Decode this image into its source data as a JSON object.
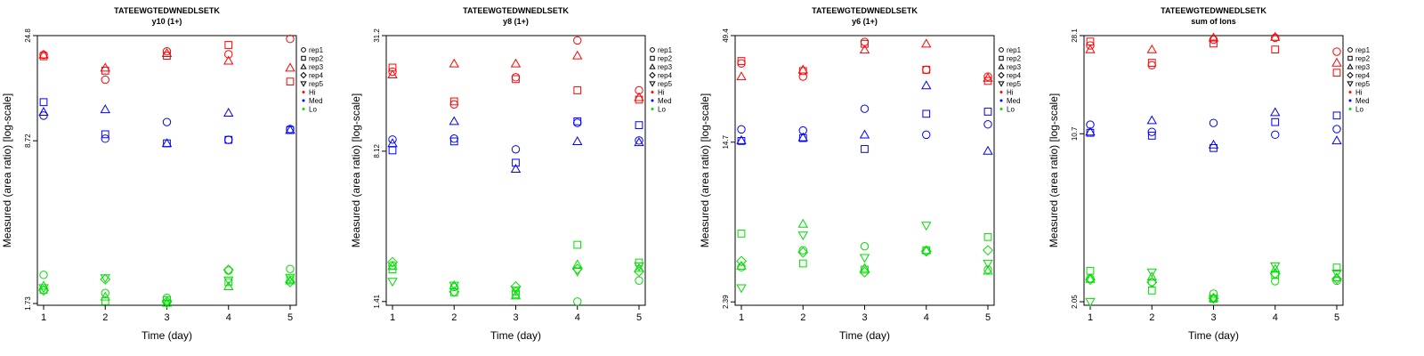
{
  "colors": {
    "Hi": "#ff0000",
    "Med": "#0000ff",
    "Lo": "#00dd00"
  },
  "legend": {
    "reps": [
      {
        "label": "rep1",
        "shape": "circle"
      },
      {
        "label": "rep2",
        "shape": "square"
      },
      {
        "label": "rep3",
        "shape": "triangle-up"
      },
      {
        "label": "rep4",
        "shape": "diamond"
      },
      {
        "label": "rep5",
        "shape": "triangle-down"
      }
    ],
    "groups": [
      {
        "label": "Hi",
        "color": "#ff0000"
      },
      {
        "label": "Med",
        "color": "#0000ff"
      },
      {
        "label": "Lo",
        "color": "#00dd00"
      }
    ]
  },
  "chart_data": [
    {
      "type": "scatter",
      "title": "TATEEWGTEDWNEDLSETK",
      "subtitle": "y10 (1+)",
      "xlabel": "Time (day)",
      "ylabel": "Measured (area ratio) [log-scale]",
      "yscale": "log",
      "ylim": [
        1.7,
        24.8
      ],
      "yticks": [
        1.73,
        8.72,
        24.8
      ],
      "ytick_labels": [
        "1.73",
        "8.72",
        "24.8"
      ],
      "x": [
        1,
        2,
        3,
        4,
        5
      ],
      "series": [
        {
          "group": "Hi",
          "rep": "rep1",
          "values": [
            20.5,
            16.0,
            21.2,
            20.6,
            24.0
          ]
        },
        {
          "group": "Hi",
          "rep": "rep2",
          "values": [
            20.2,
            17.5,
            20.3,
            22.6,
            15.7
          ]
        },
        {
          "group": "Hi",
          "rep": "rep3",
          "values": [
            20.5,
            18.0,
            20.8,
            19.3,
            18.0
          ]
        },
        {
          "group": "Med",
          "rep": "rep1",
          "values": [
            11.2,
            8.9,
            10.5,
            8.8,
            9.8
          ]
        },
        {
          "group": "Med",
          "rep": "rep2",
          "values": [
            12.8,
            9.3,
            8.5,
            8.8,
            9.7
          ]
        },
        {
          "group": "Med",
          "rep": "rep3",
          "values": [
            11.6,
            11.9,
            8.5,
            11.5,
            9.7
          ]
        },
        {
          "group": "Lo",
          "rep": "rep1",
          "values": [
            2.3,
            1.92,
            1.83,
            2.4,
            2.44
          ]
        },
        {
          "group": "Lo",
          "rep": "rep2",
          "values": [
            1.98,
            1.77,
            1.79,
            2.14,
            2.2
          ]
        },
        {
          "group": "Lo",
          "rep": "rep3",
          "values": [
            2.06,
            1.85,
            1.74,
            2.05,
            2.17
          ]
        },
        {
          "group": "Lo",
          "rep": "rep4",
          "values": [
            1.97,
            2.2,
            1.76,
            2.42,
            2.14
          ]
        },
        {
          "group": "Lo",
          "rep": "rep5",
          "values": [
            2.02,
            2.23,
            1.73,
            2.18,
            2.24
          ]
        }
      ]
    },
    {
      "type": "scatter",
      "title": "TATEEWGTEDWNEDLSETK",
      "subtitle": "y8 (1+)",
      "xlabel": "Time (day)",
      "ylabel": "Measured (area ratio) [log-scale]",
      "yscale": "log",
      "ylim": [
        1.35,
        31.2
      ],
      "yticks": [
        1.41,
        8.12,
        31.2
      ],
      "ytick_labels": [
        "1.41",
        "8.12",
        "31.2"
      ],
      "x": [
        1,
        2,
        3,
        4,
        5
      ],
      "series": [
        {
          "group": "Hi",
          "rep": "rep1",
          "values": [
            20.5,
            14.0,
            19.2,
            29.5,
            16.5
          ]
        },
        {
          "group": "Hi",
          "rep": "rep2",
          "values": [
            21.5,
            14.5,
            18.8,
            16.5,
            14.8
          ]
        },
        {
          "group": "Hi",
          "rep": "rep3",
          "values": [
            19.8,
            22.5,
            22.5,
            24.7,
            15.2
          ]
        },
        {
          "group": "Med",
          "rep": "rep1",
          "values": [
            9.3,
            9.4,
            8.3,
            11.3,
            9.2
          ]
        },
        {
          "group": "Med",
          "rep": "rep2",
          "values": [
            8.2,
            9.1,
            7.1,
            11.5,
            11.0
          ]
        },
        {
          "group": "Med",
          "rep": "rep3",
          "values": [
            8.9,
            11.5,
            6.6,
            9.1,
            9.0
          ]
        },
        {
          "group": "Lo",
          "rep": "rep1",
          "values": [
            2.15,
            1.67,
            1.58,
            1.41,
            1.8
          ]
        },
        {
          "group": "Lo",
          "rep": "rep2",
          "values": [
            2.05,
            1.57,
            1.53,
            2.73,
            2.22
          ]
        },
        {
          "group": "Lo",
          "rep": "rep3",
          "values": [
            2.13,
            1.7,
            1.51,
            2.17,
            2.08
          ]
        },
        {
          "group": "Lo",
          "rep": "rep4",
          "values": [
            2.23,
            1.58,
            1.68,
            2.06,
            2.0
          ]
        },
        {
          "group": "Lo",
          "rep": "rep5",
          "values": [
            1.78,
            1.7,
            1.61,
            2.0,
            2.13
          ]
        }
      ]
    },
    {
      "type": "scatter",
      "title": "TATEEWGTEDWNEDLSETK",
      "subtitle": "y6 (1+)",
      "xlabel": "Time (day)",
      "ylabel": "Measured (area ratio) [log-scale]",
      "yscale": "log",
      "ylim": [
        2.3,
        49.4
      ],
      "yticks": [
        2.39,
        14.7,
        49.4
      ],
      "ytick_labels": [
        "2.39",
        "14.7",
        "49.4"
      ],
      "x": [
        1,
        2,
        3,
        4,
        5
      ],
      "series": [
        {
          "group": "Hi",
          "rep": "rep1",
          "values": [
            36.0,
            31.0,
            46.0,
            33.5,
            31.0
          ]
        },
        {
          "group": "Hi",
          "rep": "rep2",
          "values": [
            37.0,
            33.0,
            45.0,
            33.5,
            29.5
          ]
        },
        {
          "group": "Hi",
          "rep": "rep3",
          "values": [
            31.0,
            33.5,
            42.0,
            45.0,
            30.5
          ]
        },
        {
          "group": "Med",
          "rep": "rep1",
          "values": [
            17.0,
            16.8,
            21.5,
            16.0,
            18.0
          ]
        },
        {
          "group": "Med",
          "rep": "rep2",
          "values": [
            14.9,
            15.4,
            13.6,
            20.3,
            20.8
          ]
        },
        {
          "group": "Med",
          "rep": "rep3",
          "values": [
            15.0,
            15.5,
            16.0,
            28.0,
            13.3
          ]
        },
        {
          "group": "Lo",
          "rep": "rep1",
          "values": [
            3.55,
            4.3,
            4.5,
            4.25,
            3.45
          ]
        },
        {
          "group": "Lo",
          "rep": "rep2",
          "values": [
            5.2,
            3.7,
            3.45,
            4.3,
            5.0
          ]
        },
        {
          "group": "Lo",
          "rep": "rep3",
          "values": [
            3.6,
            5.8,
            3.5,
            4.3,
            3.4
          ]
        },
        {
          "group": "Lo",
          "rep": "rep4",
          "values": [
            3.8,
            4.2,
            3.35,
            4.25,
            4.3
          ]
        },
        {
          "group": "Lo",
          "rep": "rep5",
          "values": [
            2.8,
            5.1,
            3.95,
            5.7,
            3.7
          ]
        }
      ]
    },
    {
      "type": "scatter",
      "title": "TATEEWGTEDWNEDLSETK",
      "subtitle": "sum of Ions",
      "xlabel": "Time (day)",
      "ylabel": "Measured (area ratio) [log-scale]",
      "yscale": "log",
      "ylim": [
        1.98,
        28.1
      ],
      "yticks": [
        2.05,
        10.7,
        28.1
      ],
      "ytick_labels": [
        "2.05",
        "10.7",
        "28.1"
      ],
      "x": [
        1,
        2,
        3,
        4,
        5
      ],
      "series": [
        {
          "group": "Hi",
          "rep": "rep1",
          "values": [
            25.5,
            21.0,
            27.0,
            27.5,
            24.0
          ]
        },
        {
          "group": "Hi",
          "rep": "rep2",
          "values": [
            26.5,
            21.5,
            26.0,
            24.5,
            19.5
          ]
        },
        {
          "group": "Hi",
          "rep": "rep3",
          "values": [
            24.5,
            24.5,
            27.5,
            27.7,
            21.5
          ]
        },
        {
          "group": "Med",
          "rep": "rep1",
          "values": [
            11.7,
            10.9,
            11.9,
            10.6,
            11.2
          ]
        },
        {
          "group": "Med",
          "rep": "rep2",
          "values": [
            10.8,
            10.5,
            9.3,
            12.0,
            12.8
          ]
        },
        {
          "group": "Med",
          "rep": "rep3",
          "values": [
            10.9,
            12.2,
            9.6,
            13.2,
            10.0
          ]
        },
        {
          "group": "Lo",
          "rep": "rep1",
          "values": [
            2.58,
            2.49,
            2.22,
            2.51,
            2.52
          ]
        },
        {
          "group": "Lo",
          "rep": "rep2",
          "values": [
            2.78,
            2.29,
            2.11,
            2.67,
            2.87
          ]
        },
        {
          "group": "Lo",
          "rep": "rep3",
          "values": [
            2.56,
            2.62,
            2.13,
            2.83,
            2.6
          ]
        },
        {
          "group": "Lo",
          "rep": "rep4",
          "values": [
            2.55,
            2.48,
            2.12,
            2.7,
            2.57
          ]
        },
        {
          "group": "Lo",
          "rep": "rep5",
          "values": [
            2.05,
            2.74,
            2.11,
            2.91,
            2.71
          ]
        }
      ]
    }
  ]
}
